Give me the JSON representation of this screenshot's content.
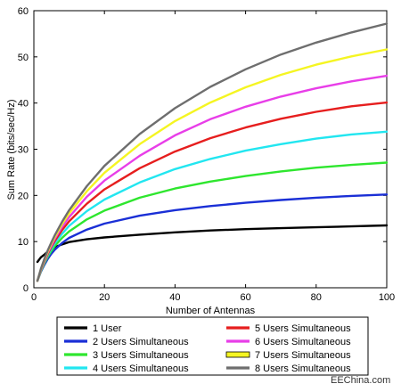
{
  "chart_data": {
    "type": "line",
    "xlabel": "Number of Antennas",
    "ylabel": "Sum Rate (bits/sec/Hz)",
    "xlim": [
      0,
      100
    ],
    "ylim": [
      0,
      60
    ],
    "xticks": [
      0,
      20,
      40,
      60,
      80,
      100
    ],
    "yticks": [
      0,
      10,
      20,
      30,
      40,
      50,
      60
    ],
    "grid": false,
    "legend_position": "bottom",
    "x": [
      1,
      2,
      3,
      4,
      5,
      6,
      8,
      10,
      15,
      20,
      30,
      40,
      50,
      60,
      70,
      80,
      90,
      100
    ],
    "series": [
      {
        "name": "1 User",
        "color": "#000000",
        "values": [
          5.6,
          6.6,
          7.2,
          7.9,
          8.4,
          8.8,
          9.4,
          9.9,
          10.5,
          10.9,
          11.5,
          12.0,
          12.4,
          12.7,
          12.9,
          13.1,
          13.3,
          13.5
        ]
      },
      {
        "name": "2 Users Simultaneous",
        "color": "#1a2fd6",
        "values": [
          1.5,
          3.5,
          5.0,
          6.3,
          7.4,
          8.3,
          9.7,
          10.8,
          12.6,
          13.9,
          15.6,
          16.8,
          17.7,
          18.4,
          19.0,
          19.5,
          19.9,
          20.2
        ]
      },
      {
        "name": "3 Users Simultaneous",
        "color": "#2ee62e",
        "values": [
          1.5,
          3.6,
          5.3,
          6.8,
          8.0,
          9.1,
          10.8,
          12.2,
          14.8,
          16.7,
          19.5,
          21.5,
          23.0,
          24.2,
          25.2,
          26.0,
          26.6,
          27.1
        ]
      },
      {
        "name": "4 Users Simultaneous",
        "color": "#22e6f0",
        "values": [
          1.5,
          3.7,
          5.5,
          7.1,
          8.5,
          9.7,
          11.7,
          13.4,
          16.6,
          19.1,
          22.8,
          25.7,
          27.9,
          29.7,
          31.1,
          32.3,
          33.2,
          33.8
        ]
      },
      {
        "name": "5 Users Simultaneous",
        "color": "#e61e1e",
        "values": [
          1.5,
          3.8,
          5.7,
          7.4,
          8.9,
          10.2,
          12.5,
          14.4,
          18.2,
          21.3,
          25.9,
          29.5,
          32.4,
          34.7,
          36.6,
          38.1,
          39.3,
          40.1
        ]
      },
      {
        "name": "6 Users Simultaneous",
        "color": "#e83ee8",
        "values": [
          1.5,
          3.9,
          5.9,
          7.7,
          9.2,
          10.7,
          13.2,
          15.3,
          19.7,
          23.2,
          28.6,
          33.0,
          36.5,
          39.2,
          41.4,
          43.2,
          44.7,
          45.9
        ]
      },
      {
        "name": "7 Users Simultaneous",
        "color": "#f5f522",
        "values": [
          1.5,
          4.0,
          6.1,
          7.9,
          9.6,
          11.1,
          13.8,
          16.1,
          20.9,
          24.9,
          31.1,
          36.1,
          40.1,
          43.4,
          46.1,
          48.3,
          50.1,
          51.6
        ]
      },
      {
        "name": "8 Users Simultaneous",
        "color": "#6e6e6e",
        "values": [
          1.5,
          4.1,
          6.3,
          8.2,
          9.9,
          11.5,
          14.3,
          16.8,
          22.0,
          26.4,
          33.3,
          38.9,
          43.5,
          47.3,
          50.5,
          53.1,
          55.3,
          57.2
        ]
      }
    ]
  },
  "watermark": "EEChina.com"
}
